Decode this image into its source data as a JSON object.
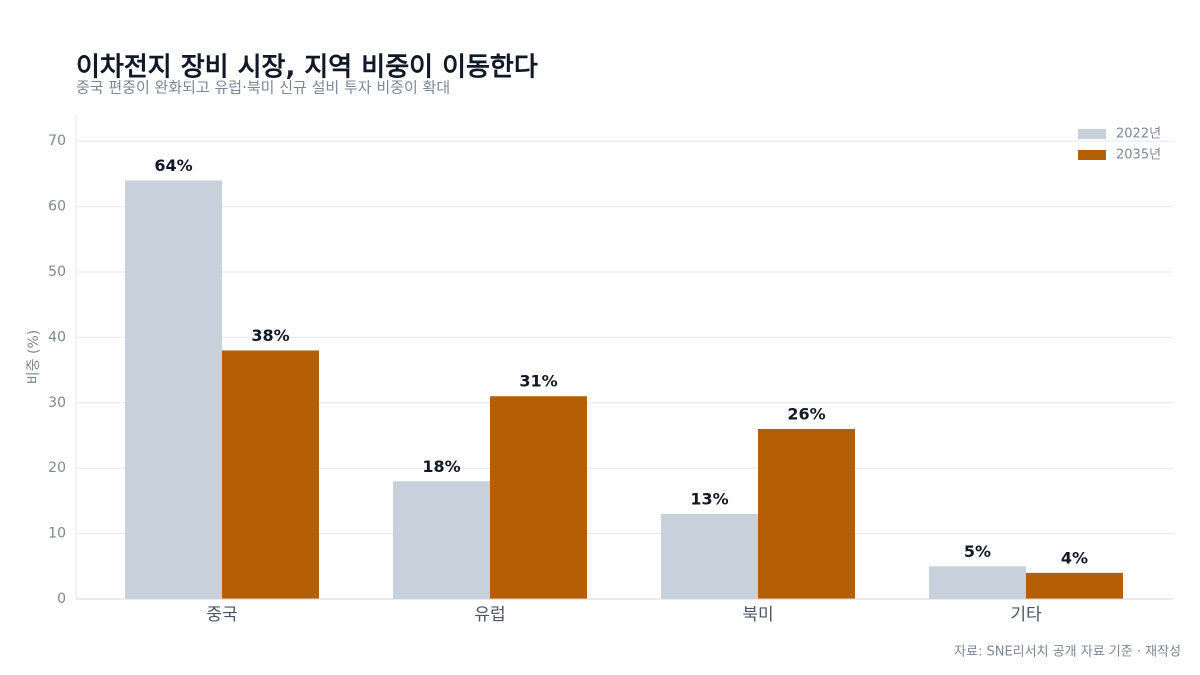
{
  "chart_data": {
    "type": "bar",
    "title": "이차전지 장비 시장, 지역 비중이 이동한다",
    "subtitle": "중국 편중이 완화되고 유럽·북미 신규 설비 투자 비중이 확대",
    "y_label": "비중 (%)",
    "source": "자료: SNE리서치 공개 자료 기준 · 재작성",
    "categories": [
      "중국",
      "유럽",
      "북미",
      "기타"
    ],
    "series": [
      {
        "name": "2022년",
        "color": "#c8d0db",
        "values": [
          64,
          18,
          13,
          5
        ],
        "value_labels": [
          "64%",
          "18%",
          "13%",
          "5%"
        ]
      },
      {
        "name": "2035년",
        "color": "#b45f06",
        "values": [
          38,
          31,
          26,
          4
        ],
        "value_labels": [
          "38%",
          "31%",
          "26%",
          "4%"
        ]
      }
    ],
    "ylim": [
      0,
      74
    ],
    "yticks": [
      0,
      10,
      20,
      30,
      40,
      50,
      60,
      70
    ],
    "grid": true,
    "legend": "top-right"
  }
}
